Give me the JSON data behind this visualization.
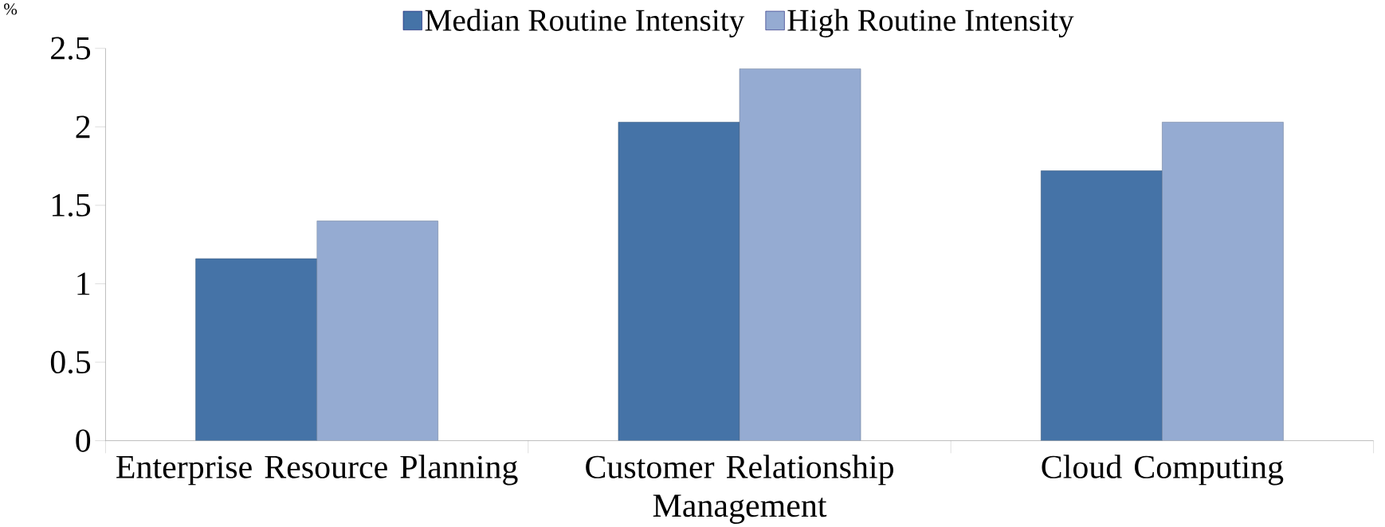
{
  "chart_data": {
    "type": "bar",
    "ylabel": "%",
    "categories": [
      "Enterprise Resource Planning",
      "Customer Relationship Management",
      "Cloud Computing"
    ],
    "series": [
      {
        "name": "Median Routine Intensity",
        "color": "#4573a7",
        "values": [
          1.16,
          2.03,
          1.72
        ]
      },
      {
        "name": "High Routine Intensity",
        "color": "#95abd2",
        "values": [
          1.4,
          2.37,
          2.03
        ]
      }
    ],
    "ylim": [
      0,
      2.5
    ],
    "yticks": [
      0,
      0.5,
      1,
      1.5,
      2,
      2.5
    ],
    "grid": false,
    "legend": "top"
  }
}
